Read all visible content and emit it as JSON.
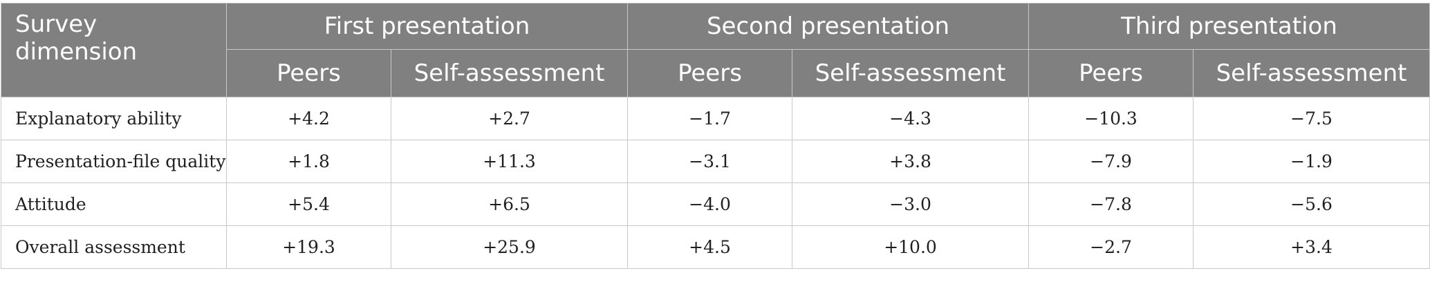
{
  "header": {
    "dimension_label": "Survey dimension",
    "groups": [
      "First presentation",
      "Second presentation",
      "Third presentation"
    ],
    "subcolumns": [
      "Peers",
      "Self-assessment",
      "Peers",
      "Self-assessment",
      "Peers",
      "Self-assessment"
    ]
  },
  "rows": [
    {
      "label": "Explanatory ability",
      "values": [
        "+4.2",
        "+2.7",
        "−1.7",
        "−4.3",
        "−10.3",
        "−7.5"
      ]
    },
    {
      "label": "Presentation-file quality",
      "values": [
        "+1.8",
        "+11.3",
        "−3.1",
        "+3.8",
        "−7.9",
        "−1.9"
      ]
    },
    {
      "label": "Attitude",
      "values": [
        "+5.4",
        "+6.5",
        "−4.0",
        "−3.0",
        "−7.8",
        "−5.6"
      ]
    },
    {
      "label": "Overall assessment",
      "values": [
        "+19.3",
        "+25.9",
        "+4.5",
        "+10.0",
        "−2.7",
        "+3.4"
      ]
    }
  ],
  "colors": {
    "header_background": "#7f807f",
    "header_text": "#ffffff",
    "border": "#c9c9c9"
  }
}
